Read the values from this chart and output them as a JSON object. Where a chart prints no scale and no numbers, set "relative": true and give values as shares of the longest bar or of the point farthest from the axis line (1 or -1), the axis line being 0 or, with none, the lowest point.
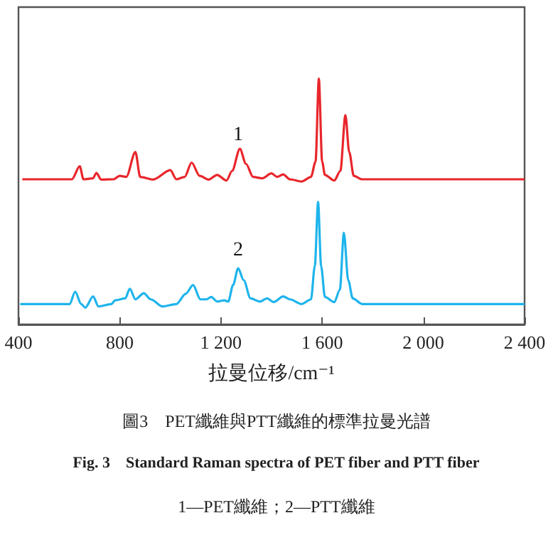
{
  "chart_data": {
    "type": "line",
    "relative": true,
    "xlabel": "拉曼位移/cm⁻¹",
    "xlim": [
      400,
      2400
    ],
    "xticks": [
      400,
      {
        "value": 800,
        "label": "800"
      },
      {
        "value": 1200,
        "label": "1 200"
      },
      {
        "value": 1600,
        "label": "1 600"
      },
      {
        "value": 2000,
        "label": "2 000"
      },
      {
        "value": 2400,
        "label": "2 400"
      }
    ],
    "grid": false,
    "marker": "none",
    "series": [
      {
        "name": "1",
        "color": "#e8262b",
        "x": [
          415,
          611,
          642,
          657,
          694,
          708,
          727,
          776,
          800,
          826,
          862,
          881,
          932,
          1000,
          1024,
          1057,
          1084,
          1116,
          1152,
          1185,
          1222,
          1244,
          1275,
          1299,
          1327,
          1363,
          1400,
          1422,
          1446,
          1473,
          1519,
          1556,
          1574,
          1587,
          1600,
          1611,
          1648,
          1672,
          1692,
          1707,
          1725,
          1758,
          2400
        ],
        "values": [
          0.59,
          0.59,
          0.643,
          0.59,
          0.594,
          0.616,
          0.589,
          0.59,
          0.604,
          0.6,
          0.701,
          0.6,
          0.589,
          0.627,
          0.59,
          0.6,
          0.658,
          0.604,
          0.589,
          0.608,
          0.585,
          0.624,
          0.714,
          0.653,
          0.6,
          0.594,
          0.614,
          0.6,
          0.61,
          0.59,
          0.581,
          0.6,
          0.662,
          1.0,
          0.662,
          0.608,
          0.585,
          0.624,
          0.851,
          0.701,
          0.604,
          0.59,
          0.59
        ]
      },
      {
        "name": "2",
        "color": "#1eb4ec",
        "x": [
          407,
          602,
          624,
          648,
          664,
          695,
          716,
          767,
          782,
          822,
          840,
          862,
          895,
          923,
          969,
          1024,
          1061,
          1090,
          1119,
          1143,
          1162,
          1185,
          1213,
          1229,
          1248,
          1268,
          1290,
          1317,
          1354,
          1382,
          1409,
          1446,
          1473,
          1519,
          1556,
          1571,
          1584,
          1596,
          1611,
          1648,
          1670,
          1686,
          1703,
          1721,
          1758,
          2400
        ],
        "values": [
          0.083,
          0.083,
          0.133,
          0.083,
          0.068,
          0.114,
          0.073,
          0.083,
          0.098,
          0.106,
          0.145,
          0.102,
          0.127,
          0.102,
          0.073,
          0.083,
          0.125,
          0.16,
          0.102,
          0.102,
          0.112,
          0.093,
          0.098,
          0.093,
          0.16,
          0.228,
          0.18,
          0.106,
          0.093,
          0.106,
          0.091,
          0.114,
          0.102,
          0.083,
          0.102,
          0.237,
          0.498,
          0.237,
          0.112,
          0.091,
          0.141,
          0.373,
          0.18,
          0.106,
          0.083,
          0.083
        ]
      }
    ],
    "annotations": [
      "圖3　PET纖維與PTT纖維的標準拉曼光譜",
      "Fig. 3　Standard Raman spectra of PET fiber and PTT fiber",
      "1—PET纖維；2—PTT纖維"
    ]
  }
}
